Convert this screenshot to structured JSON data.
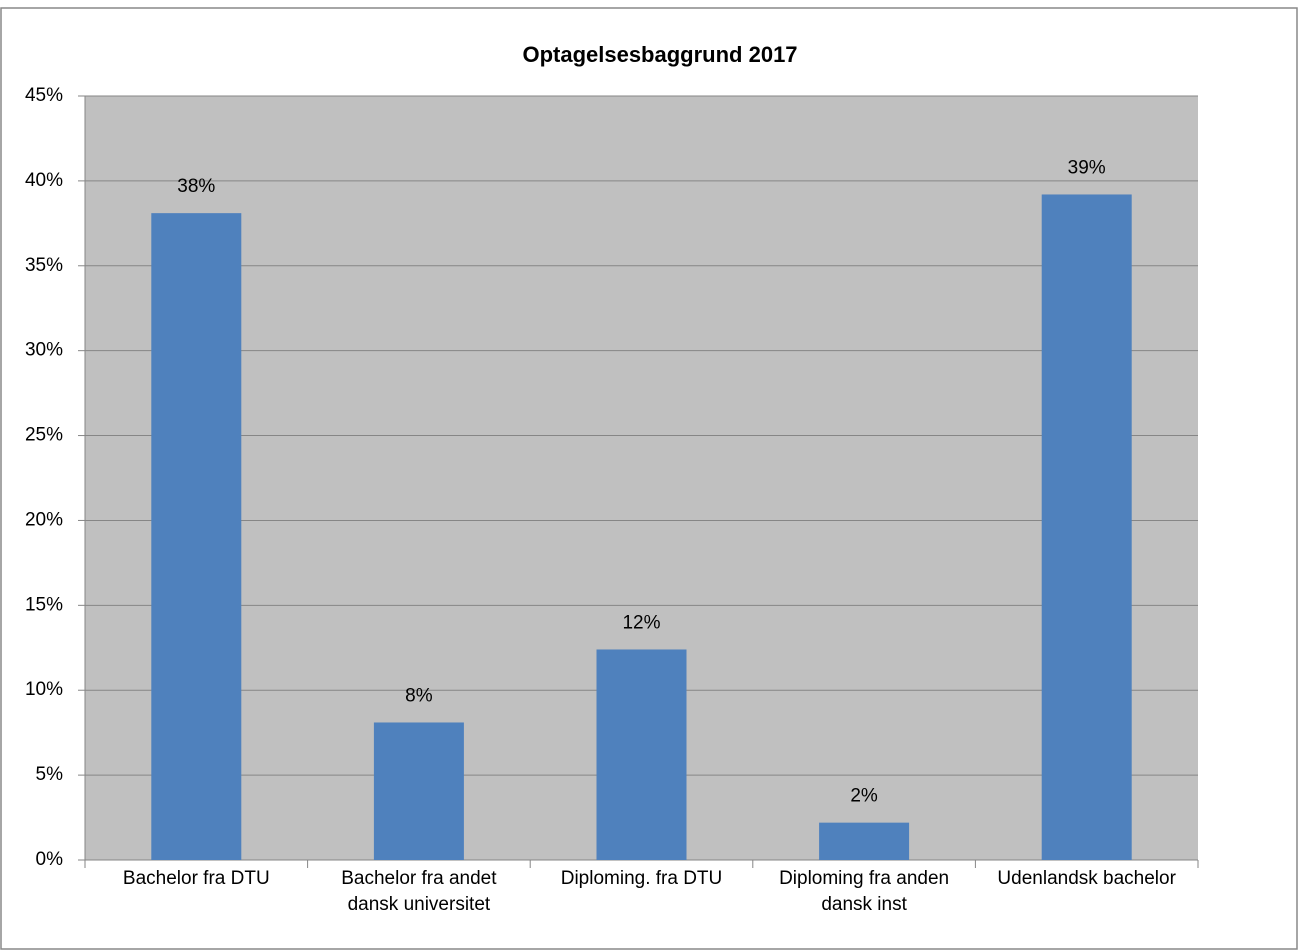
{
  "chart_data": {
    "type": "bar",
    "title": "Optagelsesbaggrund 2017",
    "categories": [
      "Bachelor fra DTU",
      "Bachelor fra andet dansk universitet",
      "Diploming. fra DTU",
      "Diploming fra anden dansk inst",
      "Udenlandsk bachelor"
    ],
    "values": [
      38.1,
      8.1,
      12.4,
      2.2,
      39.2
    ],
    "value_labels": [
      "38%",
      "8%",
      "12%",
      "2%",
      "39%"
    ],
    "color": "#4f81bd",
    "ylim": [
      0,
      45
    ],
    "yticks": [
      {
        "value": 0,
        "label": "0%"
      },
      {
        "value": 5,
        "label": "5%"
      },
      {
        "value": 10,
        "label": "10%"
      },
      {
        "value": 15,
        "label": "15%"
      },
      {
        "value": 20,
        "label": "20%"
      },
      {
        "value": 25,
        "label": "25%"
      },
      {
        "value": 30,
        "label": "30%"
      },
      {
        "value": 35,
        "label": "35%"
      },
      {
        "value": 40,
        "label": "40%"
      },
      {
        "value": 45,
        "label": "45%"
      }
    ],
    "grid": true
  }
}
